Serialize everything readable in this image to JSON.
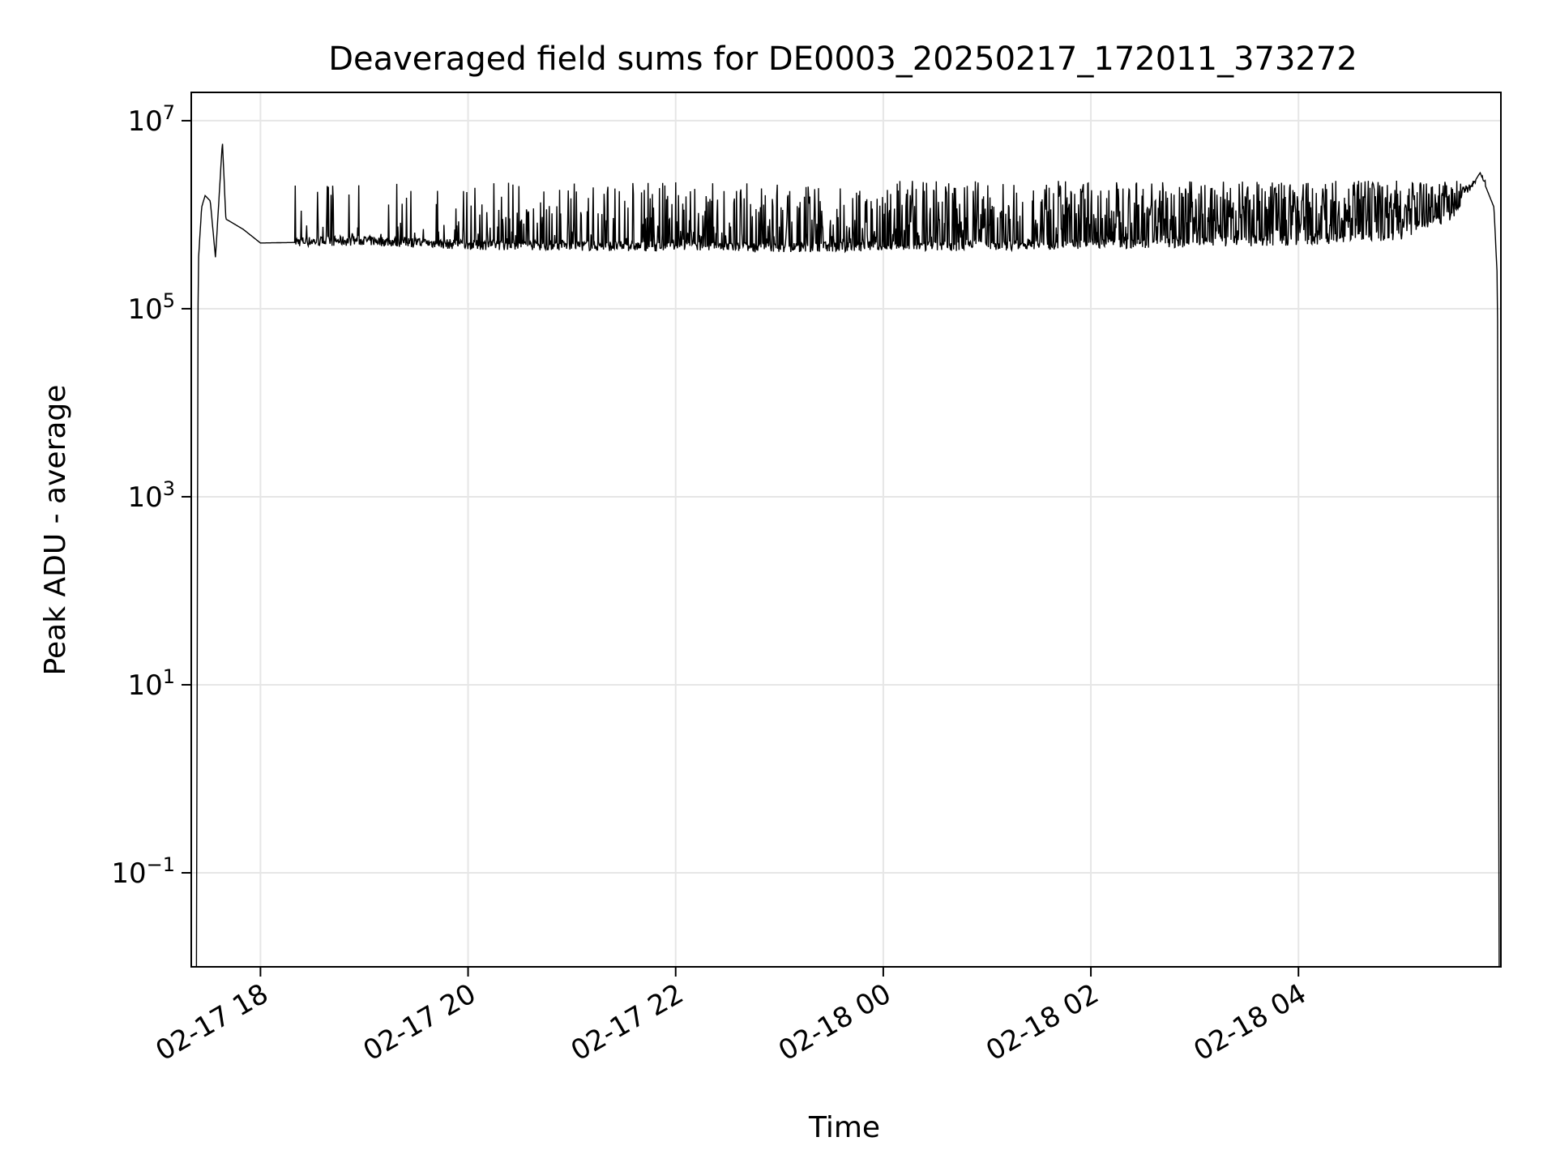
{
  "chart_data": {
    "type": "line",
    "title": "Deaveraged field sums for DE0003_20250217_172011_373272",
    "xlabel": "Time",
    "ylabel": "Peak ADU - average",
    "x_scale": "time",
    "y_scale": "log",
    "xlim": [
      "2025-02-17 17:20",
      "2025-02-18 05:57"
    ],
    "ylim": [
      0.01,
      20000000
    ],
    "grid": true,
    "legend": "none",
    "line_color": "#000000",
    "x_ticks": [
      {
        "value": "2025-02-17 18:00",
        "label": "02-17 18"
      },
      {
        "value": "2025-02-17 20:00",
        "label": "02-17 20"
      },
      {
        "value": "2025-02-17 22:00",
        "label": "02-17 22"
      },
      {
        "value": "2025-02-18 00:00",
        "label": "02-18 00"
      },
      {
        "value": "2025-02-18 02:00",
        "label": "02-18 02"
      },
      {
        "value": "2025-02-18 04:00",
        "label": "02-18 04"
      }
    ],
    "y_ticks": [
      {
        "value": 0.1,
        "base": "10",
        "exp": "−1"
      },
      {
        "value": 10,
        "base": "10",
        "exp": "1"
      },
      {
        "value": 1000,
        "base": "10",
        "exp": "3"
      },
      {
        "value": 100000,
        "base": "10",
        "exp": "5"
      },
      {
        "value": 10000000,
        "base": "10",
        "exp": "7"
      }
    ],
    "series": [
      {
        "values_description_points": [
          {
            "x": "2025-02-17 17:23",
            "y": 0.01
          },
          {
            "x": "2025-02-17 17:24",
            "y": 300000
          },
          {
            "x": "2025-02-17 17:26",
            "y": 1200000
          },
          {
            "x": "2025-02-17 17:28",
            "y": 1600000
          },
          {
            "x": "2025-02-17 17:31",
            "y": 1400000
          },
          {
            "x": "2025-02-17 17:34",
            "y": 350000
          },
          {
            "x": "2025-02-17 17:38",
            "y": 6000000
          },
          {
            "x": "2025-02-17 17:40",
            "y": 900000
          },
          {
            "x": "2025-02-17 17:50",
            "y": 700000
          },
          {
            "x": "2025-02-17 18:00",
            "y": 500000
          },
          {
            "x": "2025-02-17 19:00",
            "y": 520000
          },
          {
            "x": "2025-02-17 20:00",
            "y": 470000
          },
          {
            "x": "2025-02-17 21:00",
            "y": 460000
          },
          {
            "x": "2025-02-17 22:00",
            "y": 450000
          },
          {
            "x": "2025-02-17 23:00",
            "y": 440000
          },
          {
            "x": "2025-02-18 00:00",
            "y": 450000
          },
          {
            "x": "2025-02-18 01:00",
            "y": 460000
          },
          {
            "x": "2025-02-18 02:00",
            "y": 480000
          },
          {
            "x": "2025-02-18 03:00",
            "y": 500000
          },
          {
            "x": "2025-02-18 04:00",
            "y": 520000
          },
          {
            "x": "2025-02-18 05:00",
            "y": 600000
          },
          {
            "x": "2025-02-18 05:30",
            "y": 1000000
          },
          {
            "x": "2025-02-18 05:45",
            "y": 2800000
          },
          {
            "x": "2025-02-18 05:53",
            "y": 1200000
          },
          {
            "x": "2025-02-18 05:55",
            "y": 200000
          },
          {
            "x": "2025-02-18 05:56",
            "y": 0.01
          }
        ],
        "spike_envelope_max": 2300000,
        "baseline_min": 400000
      }
    ]
  }
}
